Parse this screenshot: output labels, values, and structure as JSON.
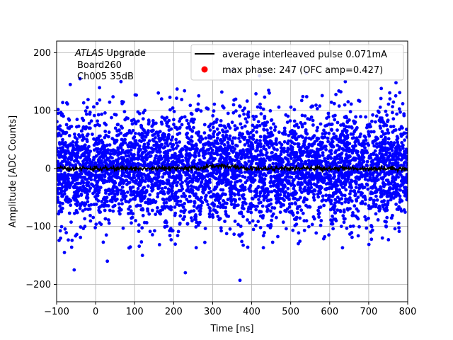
{
  "chart_data": {
    "type": "scatter",
    "xlabel": "Time [ns]",
    "ylabel": "Amplitude [ADC Counts]",
    "xlim": [
      -100,
      800
    ],
    "ylim": [
      -230,
      220
    ],
    "x_ticks": [
      -100,
      0,
      100,
      200,
      300,
      400,
      500,
      600,
      700,
      800
    ],
    "y_ticks": [
      -200,
      -100,
      0,
      100,
      200
    ],
    "x_tick_labels": [
      "−100",
      "0",
      "100",
      "200",
      "300",
      "400",
      "500",
      "600",
      "700",
      "800"
    ],
    "y_tick_labels": [
      "−200",
      "−100",
      "0",
      "100",
      "200"
    ],
    "grid": true,
    "legend_position": "upper-right",
    "annotation": {
      "line1_italic": "ATLAS",
      "line1_rest": " Upgrade",
      "line2": "Board260",
      "line3": "Ch005 35dB"
    },
    "series": [
      {
        "name": "average interleaved pulse 0.071mA",
        "kind": "line",
        "color": "#000000",
        "x_range": [
          -100,
          800
        ],
        "level": 0,
        "noise_amplitude": 3,
        "bump_center": 320,
        "bump_height": 5
      },
      {
        "name": "max phase: 247 (OFC amp=0.427)",
        "kind": "marker",
        "color": "#ff0000",
        "points": []
      },
      {
        "name": "",
        "kind": "scatter",
        "color": "#0000ff",
        "x_range": [
          -100,
          800
        ],
        "center": 0,
        "spread_sigma": 48,
        "count": 4500,
        "outliers": [
          [
            -55,
            -175
          ],
          [
            230,
            -180
          ],
          [
            370,
            -193
          ],
          [
            30,
            -160
          ],
          [
            120,
            -150
          ],
          [
            -80,
            -145
          ],
          [
            -65,
            145
          ],
          [
            -40,
            155
          ],
          [
            65,
            150
          ],
          [
            350,
            170
          ],
          [
            420,
            160
          ],
          [
            540,
            165
          ],
          [
            640,
            150
          ],
          [
            770,
            148
          ]
        ]
      }
    ]
  }
}
